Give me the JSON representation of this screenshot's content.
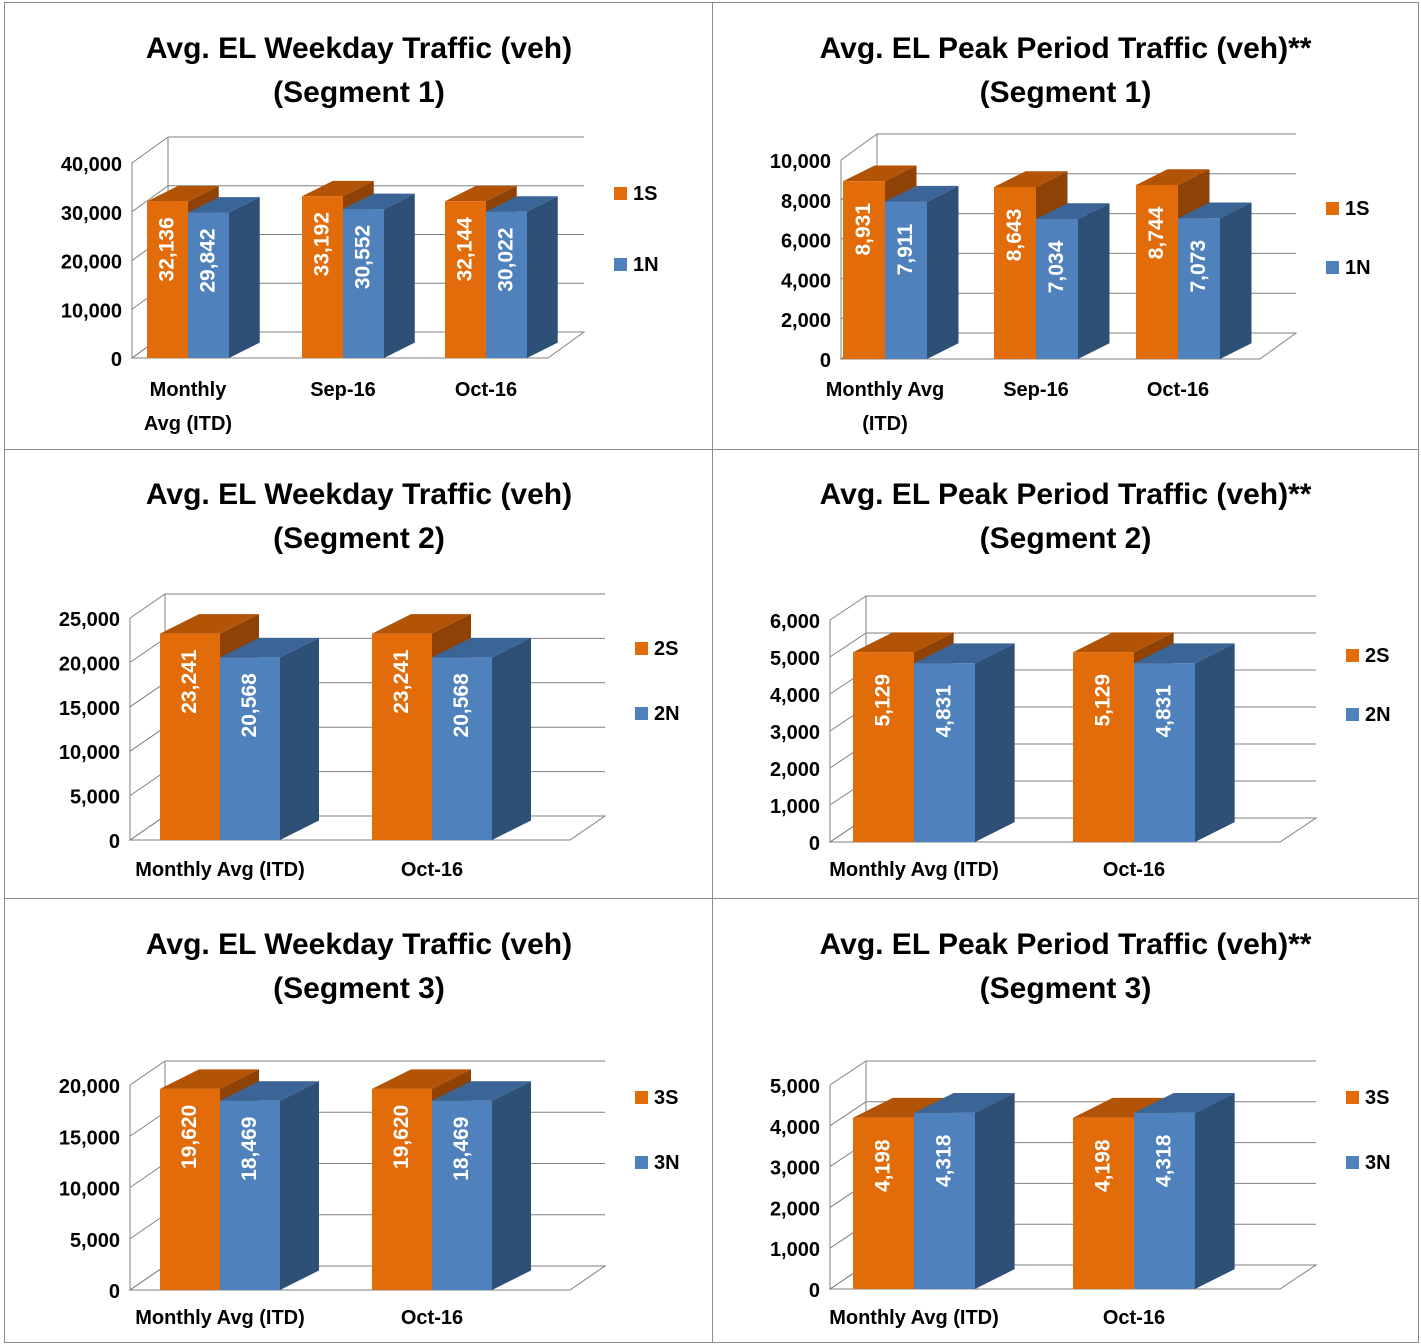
{
  "colors": {
    "orange_front": "#E36C0A",
    "orange_top": "#B35306",
    "orange_side": "#8E4205",
    "blue_front": "#4F81BD",
    "blue_top": "#3B6596",
    "blue_side": "#2E5077",
    "grid": "#808080",
    "label": "#ffffff",
    "text": "#000000"
  },
  "chart_data": [
    {
      "type": "bar",
      "title": [
        "Avg. EL Weekday Traffic (veh)",
        "(Segment 1)"
      ],
      "categories": [
        [
          "Monthly",
          "Avg (ITD)"
        ],
        [
          "Sep-16"
        ],
        [
          "Oct-16"
        ]
      ],
      "series": [
        {
          "name": "1S",
          "values": [
            32136,
            33192,
            32144
          ],
          "labels": [
            "32,136",
            "33,192",
            "32,144"
          ]
        },
        {
          "name": "1N",
          "values": [
            29842,
            30552,
            30022
          ],
          "labels": [
            "29,842",
            "30,552",
            "30,022"
          ]
        }
      ],
      "ylim": [
        0,
        40000
      ],
      "yticks": [
        0,
        10000,
        20000,
        30000,
        40000
      ],
      "ytick_labels": [
        "0",
        "10,000",
        "20,000",
        "30,000",
        "40,000"
      ],
      "legend": "right",
      "grid": true
    },
    {
      "type": "bar",
      "title": [
        "Avg. EL Peak Period Traffic (veh)**",
        "(Segment 1)"
      ],
      "categories": [
        [
          "Monthly Avg",
          "(ITD)"
        ],
        [
          "Sep-16"
        ],
        [
          "Oct-16"
        ]
      ],
      "series": [
        {
          "name": "1S",
          "values": [
            8931,
            8643,
            8744
          ],
          "labels": [
            "8,931",
            "8,643",
            "8,744"
          ]
        },
        {
          "name": "1N",
          "values": [
            7911,
            7034,
            7073
          ],
          "labels": [
            "7,911",
            "7,034",
            "7,073"
          ]
        }
      ],
      "ylim": [
        0,
        10000
      ],
      "yticks": [
        0,
        2000,
        4000,
        6000,
        8000,
        10000
      ],
      "ytick_labels": [
        "0",
        "2,000",
        "4,000",
        "6,000",
        "8,000",
        "10,000"
      ],
      "legend": "right",
      "grid": true
    },
    {
      "type": "bar",
      "title": [
        "Avg. EL Weekday Traffic (veh)",
        "(Segment 2)"
      ],
      "categories": [
        [
          "Monthly Avg (ITD)"
        ],
        [
          "Oct-16"
        ]
      ],
      "series": [
        {
          "name": "2S",
          "values": [
            23241,
            23241
          ],
          "labels": [
            "23,241",
            "23,241"
          ]
        },
        {
          "name": "2N",
          "values": [
            20568,
            20568
          ],
          "labels": [
            "20,568",
            "20,568"
          ]
        }
      ],
      "ylim": [
        0,
        25000
      ],
      "yticks": [
        0,
        5000,
        10000,
        15000,
        20000,
        25000
      ],
      "ytick_labels": [
        "0",
        "5,000",
        "10,000",
        "15,000",
        "20,000",
        "25,000"
      ],
      "legend": "right",
      "grid": true
    },
    {
      "type": "bar",
      "title": [
        "Avg. EL Peak Period Traffic (veh)**",
        "(Segment 2)"
      ],
      "categories": [
        [
          "Monthly Avg (ITD)"
        ],
        [
          "Oct-16"
        ]
      ],
      "series": [
        {
          "name": "2S",
          "values": [
            5129,
            5129
          ],
          "labels": [
            "5,129",
            "5,129"
          ]
        },
        {
          "name": "2N",
          "values": [
            4831,
            4831
          ],
          "labels": [
            "4,831",
            "4,831"
          ]
        }
      ],
      "ylim": [
        0,
        6000
      ],
      "yticks": [
        0,
        1000,
        2000,
        3000,
        4000,
        5000,
        6000
      ],
      "ytick_labels": [
        "0",
        "1,000",
        "2,000",
        "3,000",
        "4,000",
        "5,000",
        "6,000"
      ],
      "legend": "right",
      "grid": true
    },
    {
      "type": "bar",
      "title": [
        "Avg. EL Weekday Traffic (veh)",
        "(Segment 3)"
      ],
      "categories": [
        [
          "Monthly Avg (ITD)"
        ],
        [
          "Oct-16"
        ]
      ],
      "series": [
        {
          "name": "3S",
          "values": [
            19620,
            19620
          ],
          "labels": [
            "19,620",
            "19,620"
          ]
        },
        {
          "name": "3N",
          "values": [
            18469,
            18469
          ],
          "labels": [
            "18,469",
            "18,469"
          ]
        }
      ],
      "ylim": [
        0,
        20000
      ],
      "yticks": [
        0,
        5000,
        10000,
        15000,
        20000
      ],
      "ytick_labels": [
        "0",
        "5,000",
        "10,000",
        "15,000",
        "20,000"
      ],
      "legend": "right",
      "grid": true
    },
    {
      "type": "bar",
      "title": [
        "Avg. EL Peak Period Traffic (veh)**",
        "(Segment 3)"
      ],
      "categories": [
        [
          "Monthly Avg (ITD)"
        ],
        [
          "Oct-16"
        ]
      ],
      "series": [
        {
          "name": "3S",
          "values": [
            4198,
            4198
          ],
          "labels": [
            "4,198",
            "4,198"
          ]
        },
        {
          "name": "3N",
          "values": [
            4318,
            4318
          ],
          "labels": [
            "4,318",
            "4,318"
          ]
        }
      ],
      "ylim": [
        0,
        5000
      ],
      "yticks": [
        0,
        1000,
        2000,
        3000,
        4000,
        5000
      ],
      "ytick_labels": [
        "0",
        "1,000",
        "2,000",
        "3,000",
        "4,000",
        "5,000"
      ],
      "legend": "right",
      "grid": true
    }
  ]
}
